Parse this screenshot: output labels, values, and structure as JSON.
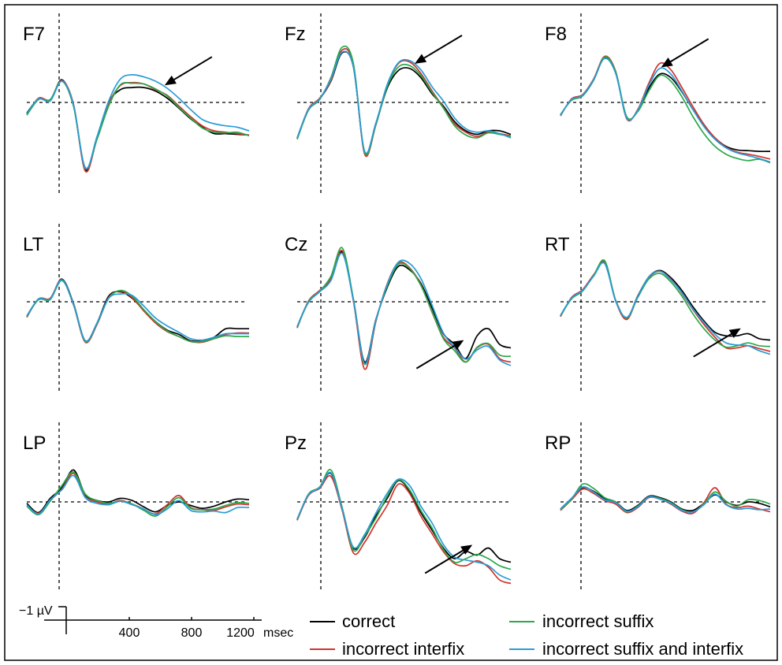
{
  "chart_data": [
    {
      "type": "line",
      "panel": "F7",
      "series": [
        {
          "name": "correct",
          "color": "#000000",
          "values": [
            -1.5,
            0.5,
            0.3,
            3.2,
            -0.5,
            -9.5,
            -5.0,
            0.0,
            1.8,
            2.1,
            2.1,
            1.6,
            0.6,
            -0.8,
            -2.3,
            -3.5,
            -4.4,
            -4.4,
            -4.5,
            -4.6
          ]
        },
        {
          "name": "incorrect interfix",
          "color": "#d2322d",
          "values": [
            -1.7,
            0.6,
            0.4,
            3.1,
            -0.3,
            -9.7,
            -5.1,
            -0.2,
            2.4,
            2.8,
            2.6,
            1.8,
            1.0,
            -0.5,
            -2.0,
            -3.3,
            -4.0,
            -4.2,
            -4.4,
            -4.6
          ]
        },
        {
          "name": "incorrect suffix",
          "color": "#2aa84a",
          "values": [
            -1.8,
            0.4,
            0.4,
            3.0,
            -0.6,
            -9.2,
            -5.2,
            -0.5,
            2.5,
            2.7,
            2.6,
            1.9,
            0.9,
            -0.7,
            -2.2,
            -3.6,
            -4.2,
            -4.3,
            -4.2,
            -4.7
          ]
        },
        {
          "name": "incorrect suffix and interfix",
          "color": "#2a9bd8",
          "values": [
            -1.6,
            0.5,
            0.2,
            3.0,
            -0.4,
            -9.3,
            -4.8,
            0.2,
            3.3,
            3.9,
            3.6,
            3.0,
            2.0,
            0.6,
            -1.0,
            -2.4,
            -3.0,
            -3.3,
            -3.5,
            -4.0
          ]
        }
      ]
    },
    {
      "type": "line",
      "panel": "Fz",
      "series": [
        {
          "name": "correct",
          "color": "#000000",
          "values": [
            -5.0,
            -1.0,
            0.5,
            3.0,
            7.0,
            5.0,
            -7.0,
            -3.0,
            2.0,
            4.5,
            4.8,
            3.5,
            1.2,
            -0.5,
            -2.7,
            -4.0,
            -4.5,
            -4.0,
            -4.0,
            -4.5
          ]
        },
        {
          "name": "incorrect interfix",
          "color": "#d2322d",
          "values": [
            -5.1,
            -0.9,
            0.6,
            3.1,
            7.4,
            5.3,
            -7.3,
            -3.2,
            2.4,
            5.5,
            5.7,
            4.1,
            1.6,
            -0.7,
            -3.0,
            -4.2,
            -4.8,
            -4.2,
            -4.4,
            -4.7
          ]
        },
        {
          "name": "incorrect suffix",
          "color": "#2aa84a",
          "values": [
            -5.2,
            -1.1,
            0.4,
            3.5,
            7.8,
            5.5,
            -7.1,
            -3.1,
            2.2,
            5.0,
            5.2,
            3.8,
            1.4,
            -0.8,
            -3.3,
            -4.6,
            -5.0,
            -4.3,
            -4.5,
            -4.8
          ]
        },
        {
          "name": "incorrect suffix and interfix",
          "color": "#2a9bd8",
          "values": [
            -5.0,
            -1.0,
            0.5,
            3.3,
            7.1,
            5.0,
            -6.9,
            -2.9,
            2.5,
            5.6,
            5.9,
            4.6,
            2.2,
            0.2,
            -2.2,
            -3.7,
            -4.2,
            -4.0,
            -4.4,
            -5.0
          ]
        }
      ]
    },
    {
      "type": "line",
      "panel": "F8",
      "series": [
        {
          "name": "correct",
          "color": "#000000",
          "values": [
            -1.8,
            0.4,
            1.0,
            3.2,
            6.3,
            4.2,
            -2.1,
            -1.2,
            2.0,
            4.0,
            3.5,
            1.5,
            -1.0,
            -3.2,
            -5.0,
            -6.2,
            -6.7,
            -6.8,
            -6.9,
            -6.9
          ]
        },
        {
          "name": "incorrect interfix",
          "color": "#d2322d",
          "values": [
            -1.9,
            0.5,
            1.1,
            3.3,
            6.5,
            4.4,
            -2.3,
            -1.0,
            2.7,
            5.5,
            4.6,
            2.1,
            -0.6,
            -3.1,
            -5.0,
            -6.3,
            -7.0,
            -7.3,
            -7.6,
            -8.0
          ]
        },
        {
          "name": "incorrect suffix",
          "color": "#2aa84a",
          "values": [
            -1.7,
            0.3,
            0.9,
            3.1,
            6.4,
            4.3,
            -2.0,
            -1.3,
            1.6,
            3.8,
            3.0,
            0.8,
            -2.0,
            -4.4,
            -6.2,
            -7.3,
            -7.9,
            -8.2,
            -8.0,
            -8.5
          ]
        },
        {
          "name": "incorrect suffix and interfix",
          "color": "#2a9bd8",
          "values": [
            -1.8,
            0.4,
            1.0,
            3.2,
            6.2,
            4.1,
            -2.2,
            -1.1,
            2.4,
            4.8,
            4.0,
            1.6,
            -1.0,
            -3.4,
            -5.2,
            -6.4,
            -7.1,
            -7.5,
            -7.9,
            -8.4
          ]
        }
      ]
    },
    {
      "type": "line",
      "panel": "LT",
      "series": [
        {
          "name": "correct",
          "color": "#000000",
          "values": [
            -2.0,
            0.3,
            0.4,
            3.2,
            -0.3,
            -5.5,
            -3.0,
            0.8,
            1.4,
            0.5,
            -1.2,
            -2.8,
            -4.0,
            -4.6,
            -5.5,
            -5.5,
            -5.0,
            -3.8,
            -3.8,
            -3.8
          ]
        },
        {
          "name": "incorrect interfix",
          "color": "#d2322d",
          "values": [
            -2.2,
            0.4,
            0.5,
            3.1,
            -0.5,
            -5.7,
            -3.2,
            0.6,
            1.5,
            0.6,
            -1.3,
            -3.0,
            -4.2,
            -4.9,
            -5.6,
            -5.7,
            -5.2,
            -4.6,
            -4.4,
            -4.4
          ]
        },
        {
          "name": "incorrect suffix",
          "color": "#2aa84a",
          "values": [
            -2.1,
            0.3,
            0.3,
            3.0,
            -0.4,
            -5.6,
            -3.1,
            0.5,
            1.6,
            0.8,
            -1.1,
            -2.8,
            -4.1,
            -4.9,
            -5.6,
            -5.6,
            -5.2,
            -4.8,
            -4.9,
            -4.9
          ]
        },
        {
          "name": "incorrect suffix and interfix",
          "color": "#2a9bd8",
          "values": [
            -2.0,
            0.4,
            0.4,
            3.1,
            -0.4,
            -5.5,
            -3.0,
            0.5,
            1.1,
            0.9,
            -0.6,
            -2.3,
            -3.4,
            -4.3,
            -5.2,
            -5.4,
            -5.0,
            -4.5,
            -4.5,
            -4.5
          ]
        }
      ]
    },
    {
      "type": "line",
      "panel": "Cz",
      "series": [
        {
          "name": "correct",
          "color": "#000000",
          "values": [
            -3.5,
            0.0,
            1.5,
            3.2,
            7.0,
            0.3,
            -8.5,
            -2.5,
            2.0,
            5.0,
            4.5,
            2.6,
            -0.9,
            -4.5,
            -6.0,
            -8.0,
            -4.8,
            -3.8,
            -6.0,
            -6.5
          ]
        },
        {
          "name": "incorrect interfix",
          "color": "#d2322d",
          "values": [
            -3.7,
            0.1,
            1.6,
            3.3,
            7.2,
            0.1,
            -9.5,
            -2.8,
            2.5,
            5.5,
            4.8,
            2.4,
            -1.5,
            -5.0,
            -6.5,
            -8.5,
            -6.5,
            -6.0,
            -8.0,
            -8.5
          ]
        },
        {
          "name": "incorrect suffix",
          "color": "#2aa84a",
          "values": [
            -3.6,
            0.0,
            1.5,
            3.6,
            7.6,
            0.4,
            -8.8,
            -2.6,
            2.2,
            5.3,
            4.7,
            2.3,
            -1.4,
            -5.2,
            -6.9,
            -8.5,
            -6.4,
            -5.9,
            -7.5,
            -7.7
          ]
        },
        {
          "name": "incorrect suffix and interfix",
          "color": "#2a9bd8",
          "values": [
            -3.5,
            -0.1,
            1.4,
            3.0,
            6.8,
            0.2,
            -8.7,
            -2.6,
            2.4,
            5.6,
            5.4,
            3.3,
            -0.5,
            -4.4,
            -6.4,
            -8.1,
            -6.8,
            -6.3,
            -8.2,
            -9.0
          ]
        }
      ]
    },
    {
      "type": "line",
      "panel": "RT",
      "series": [
        {
          "name": "correct",
          "color": "#000000",
          "values": [
            -2.0,
            0.5,
            1.6,
            3.7,
            5.5,
            0.2,
            -2.3,
            0.8,
            3.5,
            4.4,
            3.4,
            1.6,
            -0.7,
            -2.7,
            -4.3,
            -4.8,
            -4.8,
            -4.5,
            -5.2,
            -5.4
          ]
        },
        {
          "name": "incorrect interfix",
          "color": "#d2322d",
          "values": [
            -2.1,
            0.6,
            1.7,
            3.8,
            5.6,
            0.1,
            -2.5,
            0.7,
            3.4,
            4.3,
            3.2,
            1.2,
            -1.1,
            -3.2,
            -5.0,
            -6.5,
            -6.5,
            -6.2,
            -6.6,
            -7.0
          ]
        },
        {
          "name": "incorrect suffix",
          "color": "#2aa84a",
          "values": [
            -2.0,
            0.4,
            1.5,
            3.7,
            5.8,
            0.2,
            -2.3,
            0.6,
            3.2,
            4.0,
            2.8,
            0.8,
            -1.7,
            -3.8,
            -5.4,
            -6.4,
            -6.2,
            -5.8,
            -6.2,
            -6.3
          ]
        },
        {
          "name": "incorrect suffix and interfix",
          "color": "#2a9bd8",
          "values": [
            -1.9,
            0.5,
            1.6,
            3.6,
            5.4,
            0.1,
            -2.2,
            0.7,
            3.5,
            4.3,
            3.1,
            1.3,
            -1.0,
            -2.9,
            -4.6,
            -5.8,
            -6.1,
            -6.2,
            -6.9,
            -7.4
          ]
        }
      ]
    },
    {
      "type": "line",
      "panel": "LP",
      "series": [
        {
          "name": "correct",
          "color": "#000000",
          "values": [
            -0.2,
            -1.5,
            0.5,
            2.0,
            4.5,
            1.0,
            0.2,
            0.0,
            0.5,
            0.2,
            -0.7,
            -1.4,
            -0.5,
            0.0,
            -0.5,
            -0.9,
            -0.6,
            0.0,
            0.4,
            0.3
          ]
        },
        {
          "name": "incorrect interfix",
          "color": "#d2322d",
          "values": [
            -0.5,
            -1.6,
            0.2,
            1.8,
            4.0,
            0.7,
            0.0,
            -0.3,
            0.2,
            -0.3,
            -1.0,
            -1.7,
            -0.4,
            0.9,
            -0.8,
            -1.1,
            -1.2,
            -0.7,
            -0.3,
            -0.4
          ]
        },
        {
          "name": "incorrect suffix",
          "color": "#2aa84a",
          "values": [
            -0.6,
            -1.8,
            0.1,
            2.3,
            4.2,
            1.1,
            0.2,
            -0.2,
            0.1,
            -0.3,
            -1.2,
            -2.0,
            -0.7,
            0.6,
            -0.9,
            -1.1,
            -1.0,
            -0.5,
            -0.1,
            -0.2
          ]
        },
        {
          "name": "incorrect suffix and interfix",
          "color": "#2a9bd8",
          "values": [
            -0.4,
            -1.7,
            0.3,
            1.7,
            3.7,
            0.6,
            -0.2,
            -0.4,
            0.1,
            -0.4,
            -1.0,
            -1.8,
            -1.0,
            0.2,
            -1.2,
            -1.4,
            -1.3,
            -1.5,
            -0.8,
            -0.8
          ]
        }
      ]
    },
    {
      "type": "line",
      "panel": "Pz",
      "series": [
        {
          "name": "correct",
          "color": "#000000",
          "values": [
            -2.5,
            1.0,
            2.0,
            4.0,
            -1.0,
            -6.5,
            -5.0,
            -2.0,
            0.5,
            3.0,
            1.5,
            -1.5,
            -4.0,
            -6.5,
            -8.0,
            -7.0,
            -7.5,
            -6.5,
            -8.0,
            -8.5
          ]
        },
        {
          "name": "incorrect interfix",
          "color": "#d2322d",
          "values": [
            -2.6,
            0.9,
            1.9,
            3.6,
            -1.2,
            -7.2,
            -5.7,
            -3.0,
            -0.5,
            2.5,
            1.2,
            -2.0,
            -4.5,
            -7.0,
            -8.7,
            -9.0,
            -8.3,
            -9.2,
            -11.0,
            -11.5
          ]
        },
        {
          "name": "incorrect suffix",
          "color": "#2aa84a",
          "values": [
            -2.5,
            1.1,
            2.1,
            4.5,
            -0.8,
            -6.8,
            -4.8,
            -2.3,
            0.8,
            3.1,
            1.7,
            -1.2,
            -3.7,
            -6.7,
            -8.5,
            -8.0,
            -7.4,
            -8.0,
            -9.0,
            -9.5
          ]
        },
        {
          "name": "incorrect suffix and interfix",
          "color": "#2a9bd8",
          "values": [
            -2.4,
            1.0,
            2.0,
            4.1,
            -1.0,
            -6.4,
            -4.6,
            -1.6,
            1.2,
            3.2,
            2.3,
            -0.6,
            -3.0,
            -6.0,
            -7.8,
            -8.2,
            -8.5,
            -9.0,
            -10.3,
            -11.0
          ]
        }
      ]
    },
    {
      "type": "line",
      "panel": "RP",
      "series": [
        {
          "name": "correct",
          "color": "#000000",
          "values": [
            -1.0,
            0.5,
            2.0,
            1.5,
            0.5,
            0.0,
            -1.2,
            -0.5,
            0.8,
            0.6,
            0.0,
            -1.0,
            -1.2,
            -0.2,
            1.0,
            0.0,
            -0.5,
            0.0,
            -0.2,
            -0.7
          ]
        },
        {
          "name": "incorrect interfix",
          "color": "#d2322d",
          "values": [
            -1.2,
            0.3,
            1.8,
            1.2,
            0.2,
            -0.3,
            -1.5,
            -0.8,
            0.6,
            0.4,
            -0.3,
            -1.3,
            -1.6,
            -0.1,
            2.0,
            -0.3,
            -0.8,
            -0.6,
            -1.0,
            -1.4
          ]
        },
        {
          "name": "incorrect suffix",
          "color": "#2aa84a",
          "values": [
            -1.1,
            0.4,
            2.5,
            1.9,
            0.6,
            0.0,
            -1.4,
            -0.6,
            0.7,
            0.5,
            -0.1,
            -1.1,
            -1.4,
            -0.3,
            1.4,
            0.1,
            -0.6,
            0.3,
            0.2,
            -0.3
          ]
        },
        {
          "name": "incorrect suffix and interfix",
          "color": "#2a9bd8",
          "values": [
            -1.0,
            0.5,
            2.1,
            1.4,
            0.3,
            -0.1,
            -1.3,
            -0.7,
            0.7,
            0.4,
            -0.2,
            -1.2,
            -1.4,
            -0.4,
            1.1,
            -0.4,
            -1.0,
            -0.9,
            -1.1,
            -1.0
          ]
        }
      ]
    }
  ],
  "panels": [
    {
      "label": "F7",
      "arrow": "down-left",
      "arrow_at": [
        0.62,
        0.4
      ]
    },
    {
      "label": "Fz",
      "arrow": "down-left",
      "arrow_at": [
        0.55,
        0.28
      ]
    },
    {
      "label": "F8",
      "arrow": "down-left",
      "arrow_at": [
        0.48,
        0.3
      ]
    },
    {
      "label": "LT",
      "arrow": ""
    },
    {
      "label": "Cz",
      "arrow": "up-right",
      "arrow_at": [
        0.78,
        0.69
      ]
    },
    {
      "label": "RT",
      "arrow": "up-right",
      "arrow_at": [
        0.86,
        0.62
      ]
    },
    {
      "label": "LP",
      "arrow": ""
    },
    {
      "label": "Pz",
      "arrow": "up-right",
      "arrow_at": [
        0.82,
        0.72
      ]
    },
    {
      "label": "RP",
      "arrow": ""
    }
  ],
  "scale_bar": {
    "amplitude_label": "−1 µV",
    "tick_labels": [
      "400",
      "800",
      "1200"
    ],
    "unit_label": "msec"
  },
  "legend": [
    {
      "label": "correct",
      "color": "#000000"
    },
    {
      "label": "incorrect suffix",
      "color": "#2aa84a"
    },
    {
      "label": "incorrect interfix",
      "color": "#d2322d"
    },
    {
      "label": "incorrect suffix and interfix",
      "color": "#2a9bd8"
    }
  ]
}
